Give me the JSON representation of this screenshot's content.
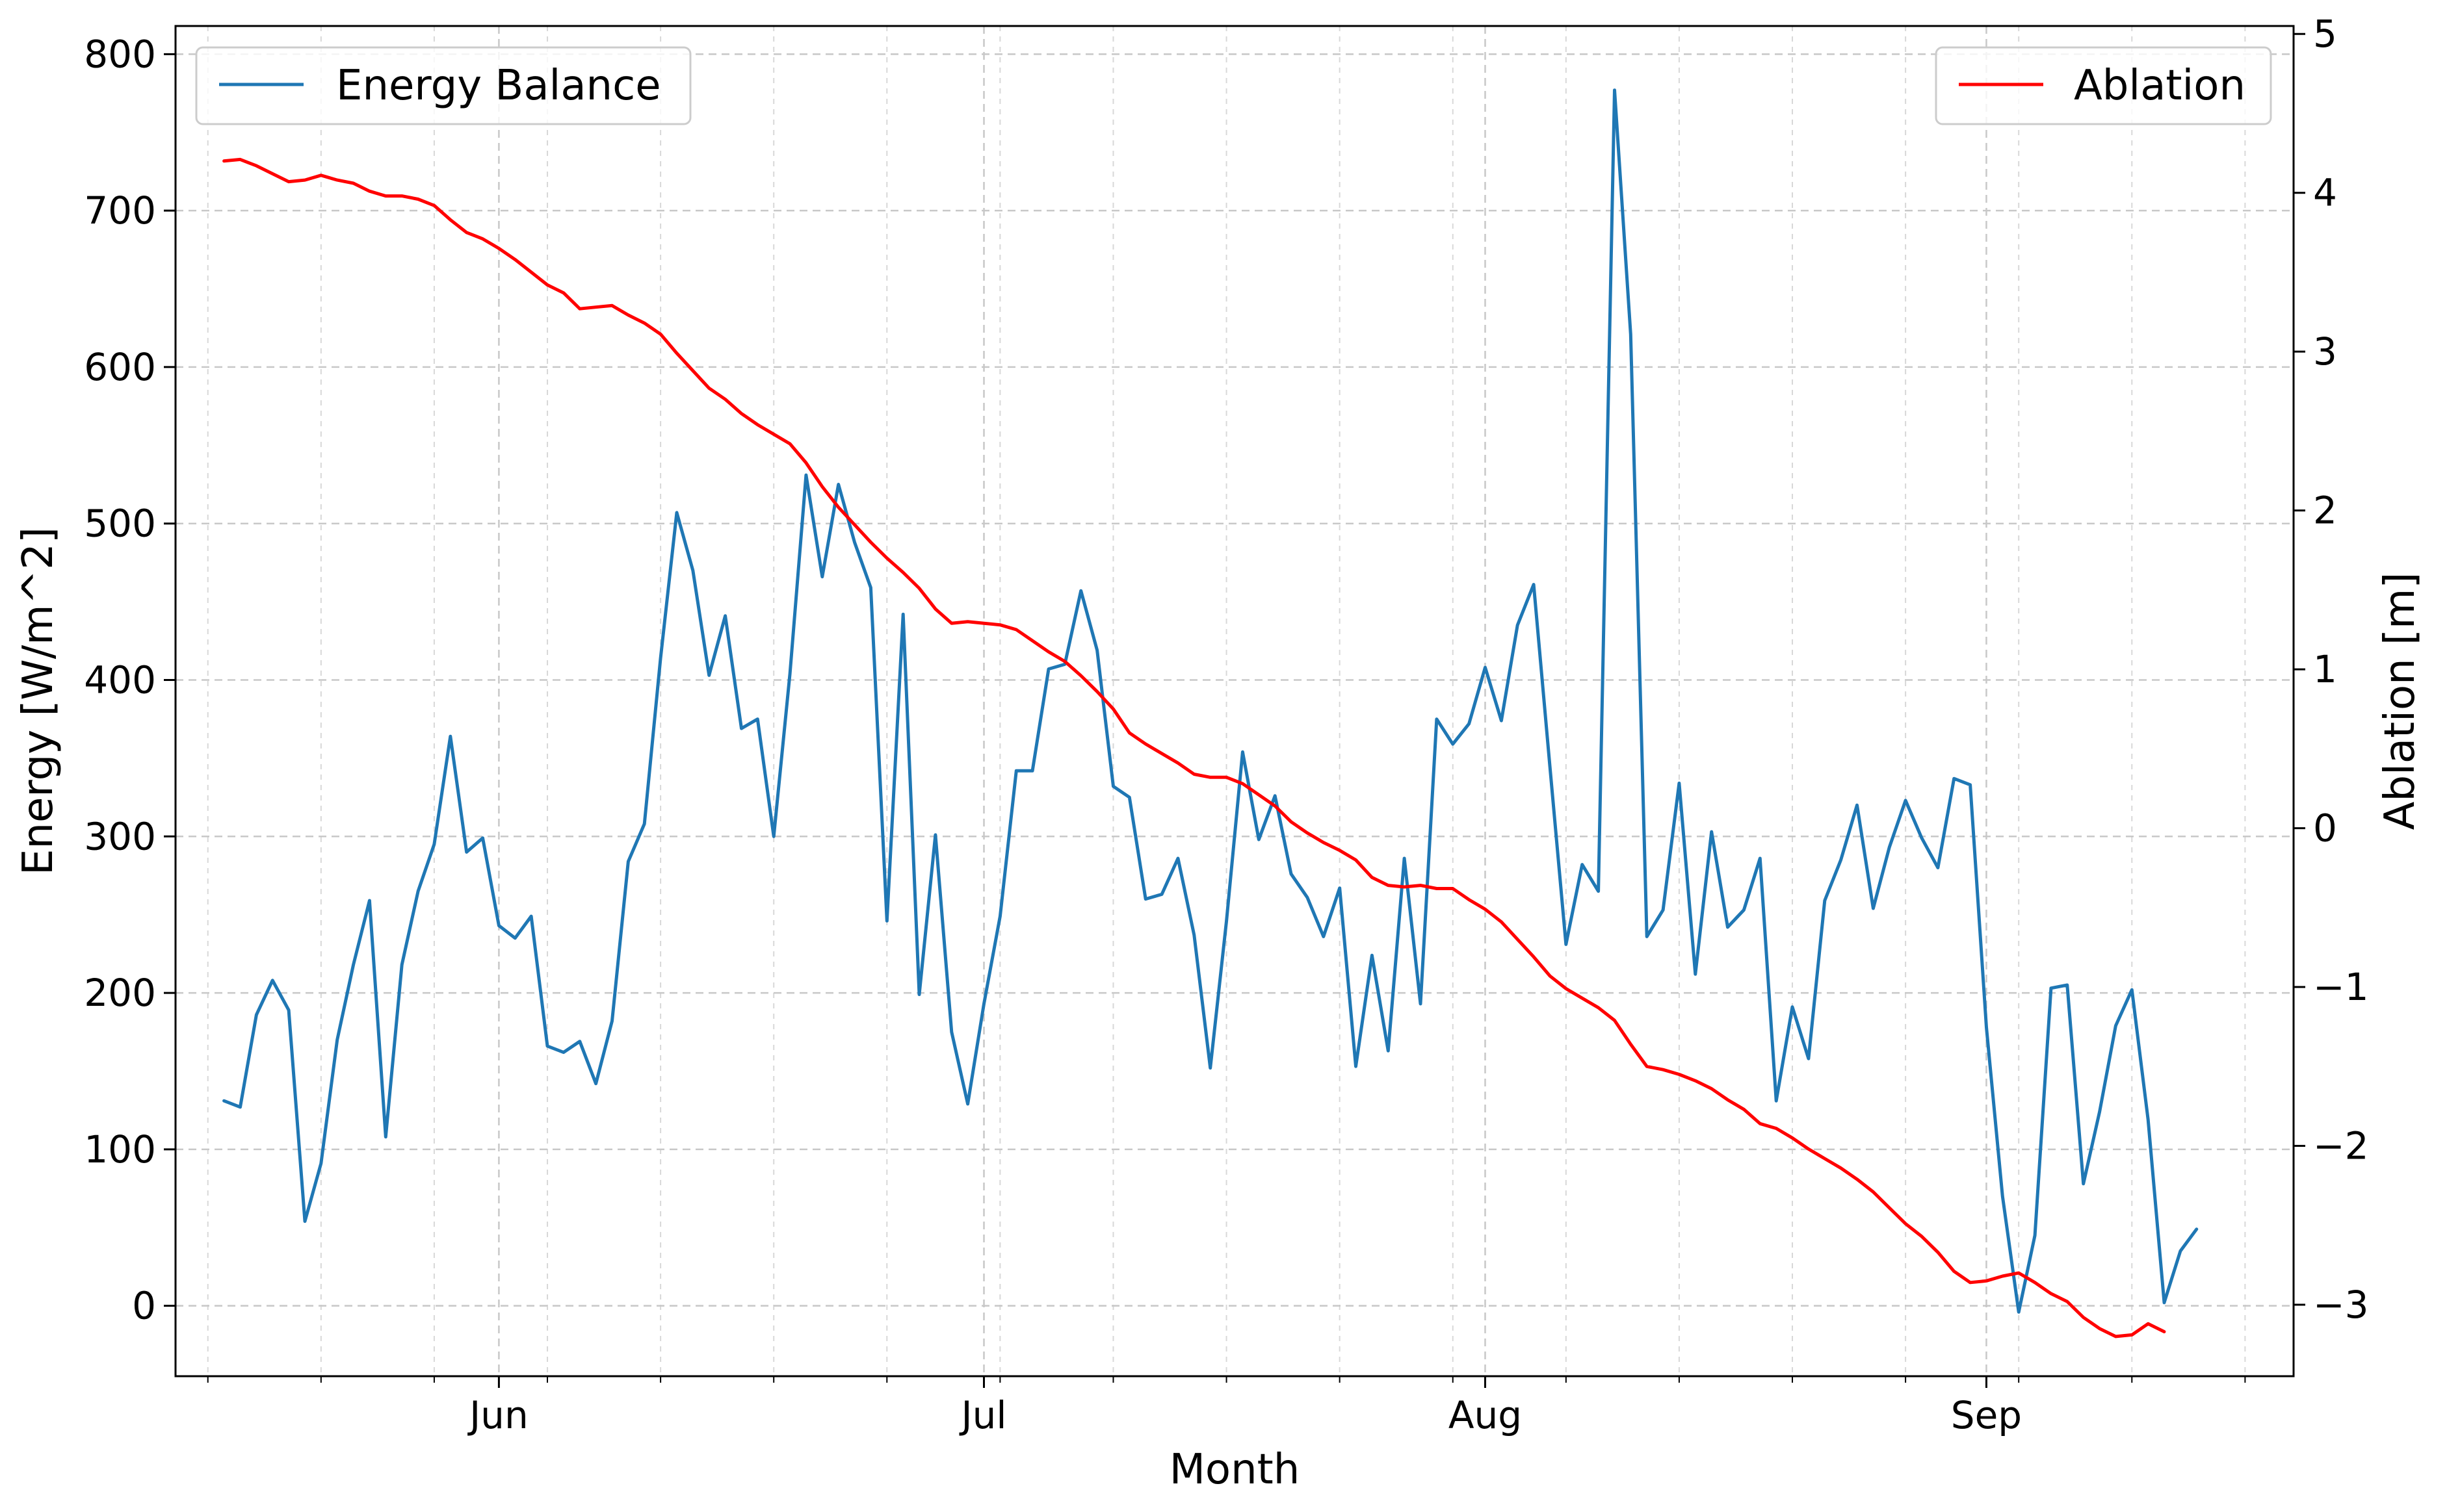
{
  "chart_data": {
    "type": "line",
    "xlabel": "Month",
    "ylabel_left": "Energy [W/m^2]",
    "ylabel_right": "Ablation [m]",
    "x_axis": {
      "type": "date",
      "range": [
        "2023-05-12",
        "2023-09-20"
      ],
      "tick_labels": [
        "Jun",
        "Jul",
        "Aug",
        "Sep"
      ],
      "major_ticks": [
        "2023-06-01",
        "2023-07-01",
        "2023-08-01",
        "2023-09-01"
      ],
      "minor_ticks": [
        "2023-05-14",
        "2023-05-21",
        "2023-05-28",
        "2023-06-04",
        "2023-06-11",
        "2023-06-18",
        "2023-06-25",
        "2023-07-02",
        "2023-07-09",
        "2023-07-16",
        "2023-07-23",
        "2023-07-30",
        "2023-08-06",
        "2023-08-13",
        "2023-08-20",
        "2023-08-27",
        "2023-09-03",
        "2023-09-10",
        "2023-09-17"
      ]
    },
    "y_left": {
      "ylim": [
        -45,
        818
      ],
      "ticks": [
        0,
        100,
        200,
        300,
        400,
        500,
        600,
        700,
        800
      ]
    },
    "y_right": {
      "ylim": [
        -3.45,
        5.05
      ],
      "ticks": [
        -3,
        -2,
        -1,
        0,
        1,
        2,
        3,
        4,
        5
      ],
      "tick_labels": [
        "−3",
        "−2",
        "−1",
        "0",
        "1",
        "2",
        "3",
        "4",
        "5"
      ]
    },
    "grid": true,
    "x_start": "2023-05-15",
    "step_days": 1,
    "series": [
      {
        "name": "Energy Balance",
        "axis": "left",
        "color": "#1f77b4",
        "legend_position": "upper left",
        "values": [
          131,
          127,
          186,
          208,
          189,
          54,
          91,
          170,
          218,
          259,
          108,
          218,
          265,
          295,
          364,
          290,
          299,
          243,
          235,
          249,
          166,
          162,
          169,
          142,
          182,
          284,
          308,
          414,
          507,
          470,
          403,
          441,
          369,
          375,
          300,
          404,
          531,
          466,
          525,
          488,
          459,
          246,
          442,
          199,
          301,
          175,
          129,
          193,
          249,
          342,
          342,
          407,
          410,
          457,
          419,
          332,
          325,
          260,
          263,
          286,
          237,
          152,
          246,
          354,
          298,
          326,
          276,
          261,
          236,
          267,
          153,
          224,
          163,
          286,
          193,
          375,
          359,
          372,
          408,
          374,
          435,
          461,
          345,
          231,
          282,
          265,
          777,
          621,
          236,
          253,
          334,
          212,
          303,
          242,
          253,
          286,
          131,
          191,
          158,
          259,
          285,
          320,
          254,
          293,
          323,
          299,
          280,
          337,
          333,
          178,
          70,
          -4,
          45,
          203,
          205,
          78,
          124,
          179,
          202,
          119,
          2,
          35,
          49
        ]
      },
      {
        "name": "Ablation",
        "axis": "right",
        "color": "#ff0000",
        "legend_position": "upper right",
        "values": [
          4.2,
          4.21,
          4.17,
          4.12,
          4.07,
          4.08,
          4.11,
          4.08,
          4.06,
          4.01,
          3.98,
          3.98,
          3.96,
          3.92,
          3.83,
          3.75,
          3.71,
          3.65,
          3.58,
          3.5,
          3.42,
          3.37,
          3.27,
          3.28,
          3.29,
          3.23,
          3.18,
          3.11,
          2.99,
          2.88,
          2.77,
          2.7,
          2.61,
          2.54,
          2.48,
          2.42,
          2.3,
          2.15,
          2.02,
          1.91,
          1.8,
          1.7,
          1.61,
          1.51,
          1.38,
          1.29,
          1.3,
          1.29,
          1.28,
          1.25,
          1.18,
          1.11,
          1.05,
          0.96,
          0.86,
          0.75,
          0.6,
          0.53,
          0.47,
          0.41,
          0.34,
          0.32,
          0.32,
          0.28,
          0.21,
          0.14,
          0.04,
          -0.03,
          -0.09,
          -0.14,
          -0.2,
          -0.31,
          -0.36,
          -0.37,
          -0.36,
          -0.38,
          -0.38,
          -0.45,
          -0.51,
          -0.59,
          -0.7,
          -0.81,
          -0.93,
          -1.01,
          -1.07,
          -1.13,
          -1.21,
          -1.36,
          -1.5,
          -1.52,
          -1.55,
          -1.59,
          -1.64,
          -1.71,
          -1.77,
          -1.86,
          -1.89,
          -1.95,
          -2.02,
          -2.08,
          -2.14,
          -2.21,
          -2.29,
          -2.39,
          -2.49,
          -2.57,
          -2.67,
          -2.79,
          -2.86,
          -2.85,
          -2.82,
          -2.8,
          -2.86,
          -2.93,
          -2.98,
          -3.08,
          -3.15,
          -3.2,
          -3.19,
          -3.12,
          -3.17
        ]
      }
    ]
  }
}
